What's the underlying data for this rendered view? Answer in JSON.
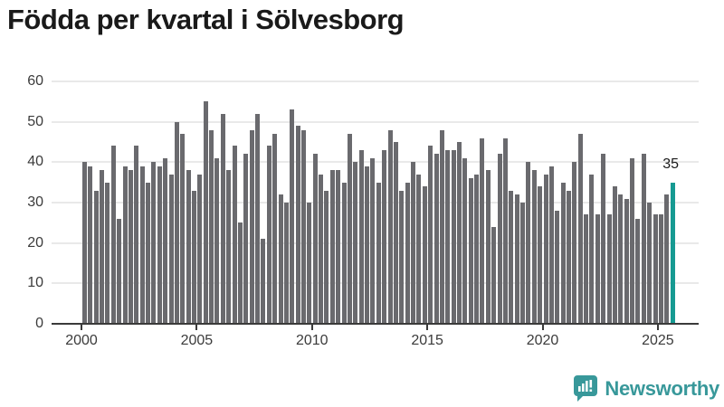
{
  "title": "Födda per kvartal i Sölvesborg",
  "annotation": {
    "last_value_label": "35"
  },
  "chart_data": {
    "type": "bar",
    "title": "Födda per kvartal i Sölvesborg",
    "frequency": "quarterly",
    "start_quarter": "2000-Q1",
    "end_quarter": "2025-Q3",
    "values": [
      40,
      39,
      33,
      38,
      35,
      44,
      26,
      39,
      38,
      44,
      39,
      35,
      40,
      39,
      41,
      37,
      50,
      47,
      38,
      33,
      37,
      55,
      48,
      41,
      52,
      38,
      44,
      25,
      42,
      48,
      52,
      21,
      44,
      47,
      32,
      30,
      53,
      49,
      48,
      30,
      42,
      37,
      33,
      38,
      38,
      35,
      47,
      40,
      43,
      39,
      41,
      35,
      43,
      48,
      45,
      33,
      35,
      40,
      37,
      34,
      44,
      42,
      48,
      43,
      43,
      45,
      41,
      36,
      37,
      46,
      38,
      24,
      42,
      46,
      33,
      32,
      30,
      40,
      38,
      34,
      37,
      39,
      28,
      35,
      33,
      40,
      47,
      27,
      37,
      27,
      42,
      27,
      34,
      32,
      31,
      41,
      26,
      42,
      30,
      27,
      27,
      32,
      35
    ],
    "highlight_last_value": 35,
    "x_tick_labels": [
      "2000",
      "2005",
      "2010",
      "2015",
      "2020",
      "2025"
    ],
    "y_ticks": [
      0,
      10,
      20,
      30,
      40,
      50,
      60
    ],
    "ylim": [
      0,
      60
    ],
    "grid": true,
    "legend": "none",
    "bar_color": "#6a6a6e",
    "highlight_color": "#169a92"
  },
  "footer": {
    "brand": "Newsworthy",
    "logo_icon": "bar-chart-speech-bubble-icon"
  },
  "colors": {
    "title": "#1a1a1a",
    "axis": "#3a3a3a",
    "gridline": "#e9e9e9",
    "tick_label": "#3b3b3b",
    "brand_teal": "#38989a"
  }
}
